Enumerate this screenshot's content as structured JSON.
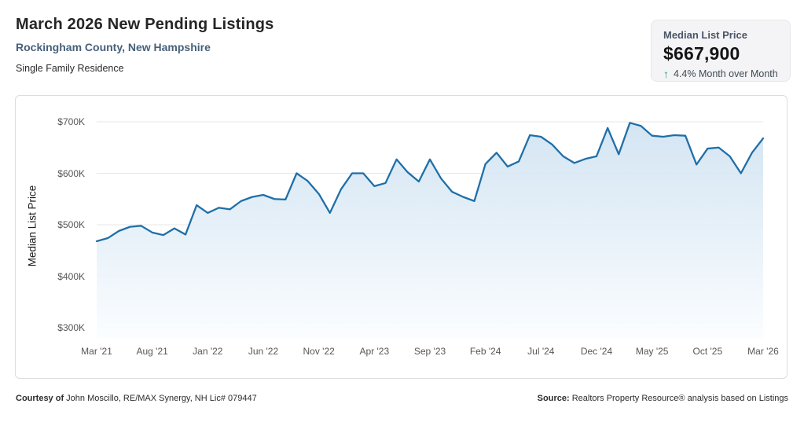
{
  "header": {
    "title": "March 2026 New Pending Listings",
    "subtitle": "Rockingham County, New Hampshire",
    "property_type": "Single Family Residence"
  },
  "stat_card": {
    "label": "Median List Price",
    "value": "$667,900",
    "trend_arrow": "↑",
    "change": "4.4% Month over Month"
  },
  "footer": {
    "courtesy_bold": "Courtesy of",
    "courtesy_rest": " John Moscillo, RE/MAX Synergy, NH Lic# 079447",
    "source_bold": "Source:",
    "source_rest": " Realtors Property Resource® analysis based on Listings"
  },
  "colors": {
    "line": "#1f6fa8",
    "fill_top": "#cfe2f1",
    "fill_bottom": "#fbfdff",
    "gridline": "#e7e7e7",
    "green": "#22a06b",
    "subtitle": "#47607a"
  },
  "chart_data": {
    "type": "area",
    "title": "March 2026 New Pending Listings — Median List Price",
    "xlabel": "",
    "ylabel": "Median List Price",
    "ylim": [
      300,
      700
    ],
    "grid": true,
    "legend": false,
    "units": "USD thousands",
    "x": [
      "Mar '21",
      "Apr '21",
      "May '21",
      "Jun '21",
      "Jul '21",
      "Aug '21",
      "Sep '21",
      "Oct '21",
      "Nov '21",
      "Dec '21",
      "Jan '22",
      "Feb '22",
      "Mar '22",
      "Apr '22",
      "May '22",
      "Jun '22",
      "Jul '22",
      "Aug '22",
      "Sep '22",
      "Oct '22",
      "Nov '22",
      "Dec '22",
      "Jan '23",
      "Feb '23",
      "Mar '23",
      "Apr '23",
      "May '23",
      "Jun '23",
      "Jul '23",
      "Aug '23",
      "Sep '23",
      "Oct '23",
      "Nov '23",
      "Dec '23",
      "Jan '24",
      "Feb '24",
      "Mar '24",
      "Apr '24",
      "May '24",
      "Jun '24",
      "Jul '24",
      "Aug '24",
      "Sep '24",
      "Oct '24",
      "Nov '24",
      "Dec '24",
      "Jan '25",
      "Feb '25",
      "Mar '25",
      "Apr '25",
      "May '25",
      "Jun '25",
      "Jul '25",
      "Aug '25",
      "Sep '25",
      "Oct '25",
      "Nov '25",
      "Dec '25",
      "Jan '26",
      "Feb '26",
      "Mar '26"
    ],
    "values": [
      468,
      474,
      488,
      496,
      498,
      485,
      480,
      493,
      481,
      538,
      523,
      533,
      530,
      546,
      554,
      558,
      550,
      549,
      600,
      585,
      560,
      523,
      569,
      600,
      600,
      575,
      581,
      627,
      602,
      584,
      627,
      590,
      564,
      554,
      546,
      618,
      640,
      613,
      623,
      674,
      671,
      656,
      633,
      620,
      628,
      633,
      688,
      637,
      698,
      692,
      673,
      671,
      674,
      673,
      617,
      648,
      650,
      633,
      600,
      640,
      667.9
    ],
    "y_ticks": [
      {
        "value": 700,
        "label": "$700K"
      },
      {
        "value": 600,
        "label": "$600K"
      },
      {
        "value": 500,
        "label": "$500K"
      },
      {
        "value": 400,
        "label": "$400K"
      },
      {
        "value": 300,
        "label": "$300K"
      }
    ],
    "x_ticks": [
      {
        "index": 0,
        "label": "Mar '21"
      },
      {
        "index": 5,
        "label": "Aug '21"
      },
      {
        "index": 10,
        "label": "Jan '22"
      },
      {
        "index": 15,
        "label": "Jun '22"
      },
      {
        "index": 20,
        "label": "Nov '22"
      },
      {
        "index": 25,
        "label": "Apr '23"
      },
      {
        "index": 30,
        "label": "Sep '23"
      },
      {
        "index": 35,
        "label": "Feb '24"
      },
      {
        "index": 40,
        "label": "Jul '24"
      },
      {
        "index": 45,
        "label": "Dec '24"
      },
      {
        "index": 50,
        "label": "May '25"
      },
      {
        "index": 55,
        "label": "Oct '25"
      },
      {
        "index": 60,
        "label": "Mar '26"
      }
    ]
  }
}
